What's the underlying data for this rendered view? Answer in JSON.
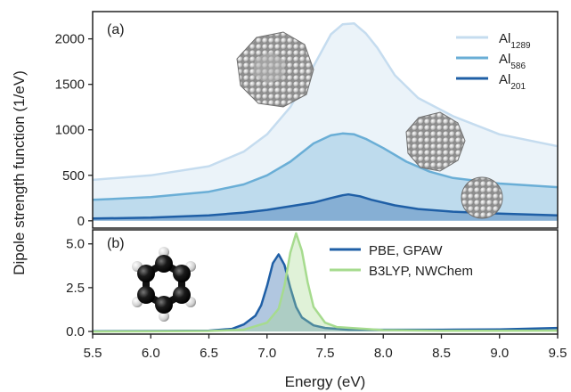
{
  "chart_data": [
    {
      "panel": "(a)",
      "type": "area",
      "ylabel": "Dipole strength function (1/eV)",
      "xlim": [
        5.5,
        9.5
      ],
      "ylim": [
        -80,
        2300
      ],
      "yticks": [
        "0",
        "500",
        "1000",
        "1500",
        "2000"
      ],
      "grid": false,
      "legend_position": "top-right",
      "series": [
        {
          "name_main": "Al",
          "name_sub": "1289",
          "color": "#c5dcef",
          "x": [
            5.5,
            6.0,
            6.5,
            6.8,
            7.0,
            7.2,
            7.4,
            7.55,
            7.65,
            7.75,
            7.85,
            7.95,
            8.1,
            8.3,
            8.6,
            9.0,
            9.5
          ],
          "y": [
            450,
            500,
            600,
            760,
            950,
            1250,
            1700,
            2050,
            2160,
            2170,
            2060,
            1900,
            1600,
            1350,
            1150,
            950,
            820
          ]
        },
        {
          "name_main": "Al",
          "name_sub": "586",
          "color": "#6aaed6",
          "x": [
            5.5,
            6.0,
            6.5,
            6.8,
            7.0,
            7.2,
            7.4,
            7.55,
            7.65,
            7.75,
            7.85,
            8.0,
            8.2,
            8.4,
            8.6,
            9.0,
            9.5
          ],
          "y": [
            230,
            260,
            320,
            400,
            500,
            650,
            850,
            940,
            960,
            950,
            900,
            800,
            650,
            540,
            470,
            410,
            370
          ]
        },
        {
          "name_main": "Al",
          "name_sub": "201",
          "color": "#1f5fa6",
          "x": [
            5.5,
            6.0,
            6.5,
            6.8,
            7.0,
            7.2,
            7.4,
            7.55,
            7.65,
            7.7,
            7.8,
            7.9,
            8.1,
            8.3,
            8.6,
            9.0,
            9.5
          ],
          "y": [
            25,
            35,
            60,
            90,
            120,
            160,
            200,
            250,
            280,
            290,
            270,
            230,
            170,
            130,
            100,
            80,
            60
          ]
        }
      ]
    },
    {
      "panel": "(b)",
      "type": "area",
      "xlabel": "Energy (eV)",
      "xlim": [
        5.5,
        9.5
      ],
      "ylim": [
        -0.15,
        5.8
      ],
      "yticks": [
        "0.0",
        "2.5",
        "5.0"
      ],
      "xticks": [
        "5.5",
        "6.0",
        "6.5",
        "7.0",
        "7.5",
        "8.0",
        "8.5",
        "9.0",
        "9.5"
      ],
      "grid": false,
      "legend_position": "top-right",
      "series": [
        {
          "name": "PBE, GPAW",
          "color": "#1f5fa6",
          "x": [
            5.5,
            6.0,
            6.5,
            6.7,
            6.8,
            6.9,
            6.95,
            7.0,
            7.05,
            7.1,
            7.15,
            7.2,
            7.25,
            7.3,
            7.4,
            7.5,
            7.7,
            8.0,
            8.5,
            9.0,
            9.5
          ],
          "y": [
            0.02,
            0.03,
            0.05,
            0.15,
            0.4,
            0.9,
            1.5,
            2.6,
            3.9,
            4.4,
            3.8,
            2.5,
            1.4,
            0.8,
            0.35,
            0.2,
            0.1,
            0.1,
            0.1,
            0.12,
            0.2
          ]
        },
        {
          "name": "B3LYP, NWChem",
          "color": "#a6db8e",
          "x": [
            5.5,
            6.0,
            6.5,
            6.8,
            7.0,
            7.1,
            7.15,
            7.2,
            7.25,
            7.3,
            7.35,
            7.4,
            7.5,
            7.6,
            8.0,
            8.5,
            9.0,
            9.5
          ],
          "y": [
            0.0,
            0.01,
            0.03,
            0.1,
            0.5,
            1.3,
            2.6,
            4.5,
            5.6,
            4.6,
            2.8,
            1.4,
            0.5,
            0.25,
            0.08,
            0.04,
            0.04,
            0.05
          ]
        }
      ]
    }
  ]
}
